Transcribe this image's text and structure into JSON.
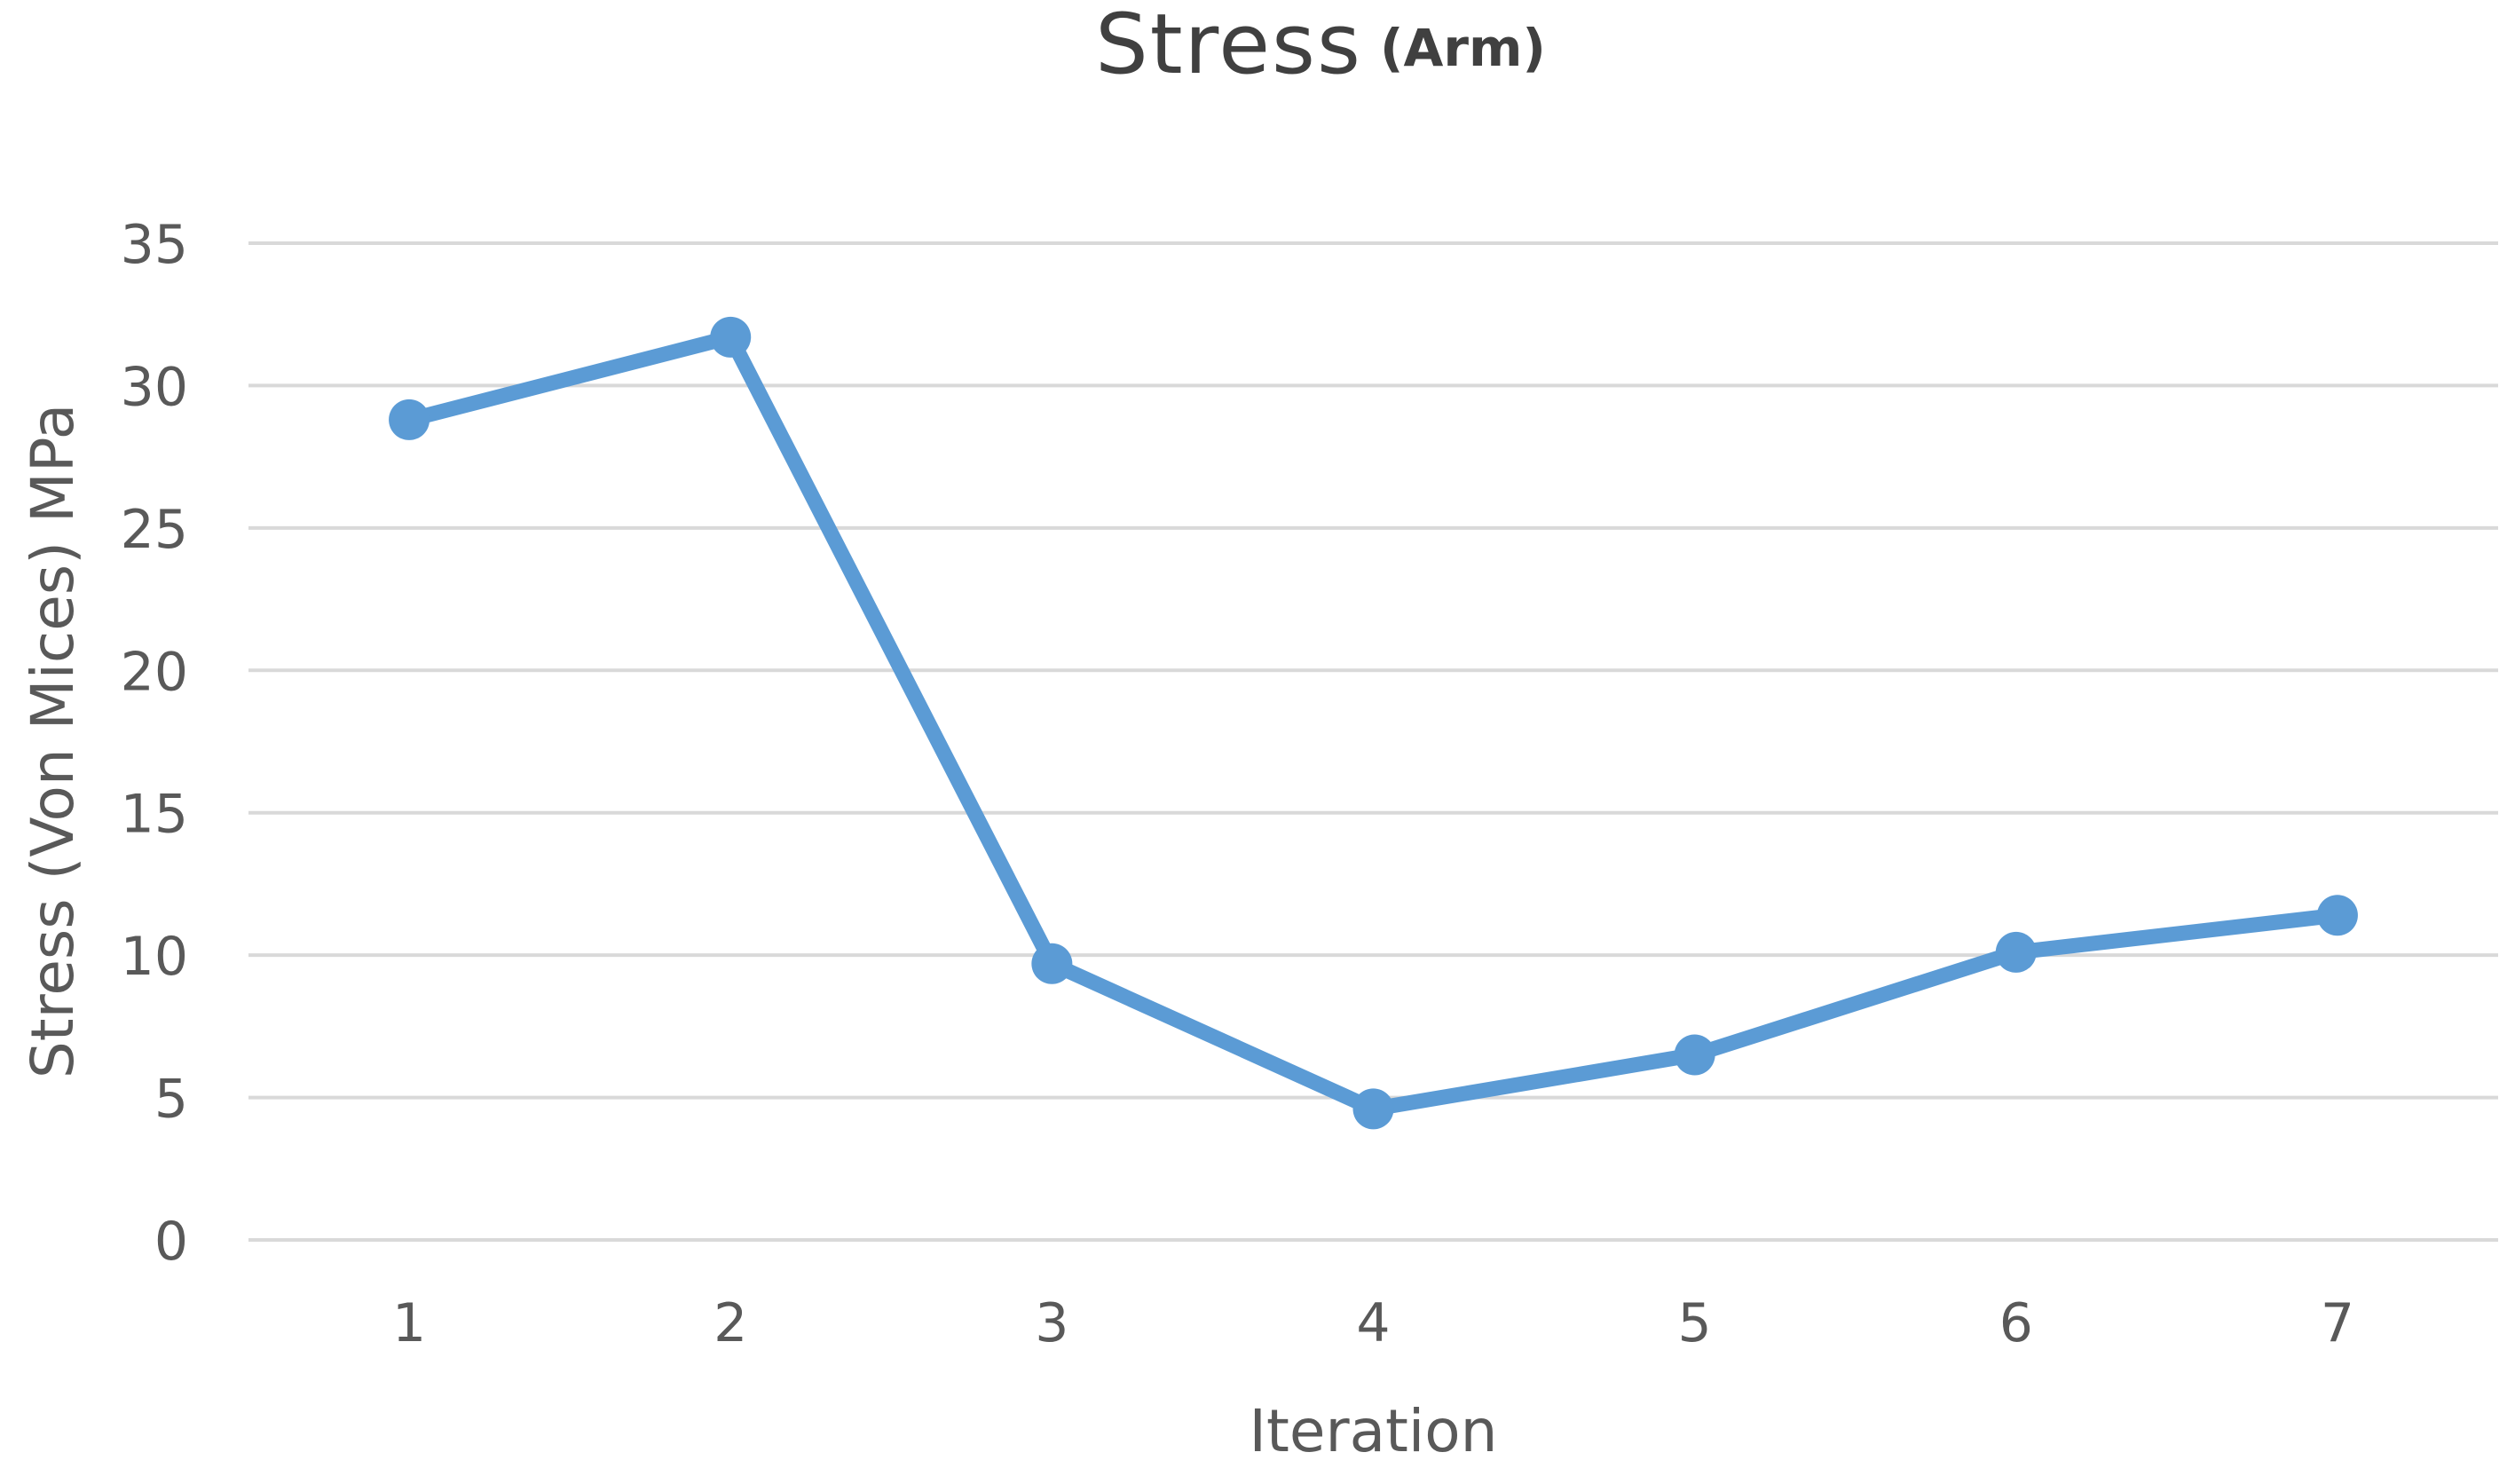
{
  "chart_data": {
    "type": "line",
    "title": "Stress",
    "title_suffix": "(Arm)",
    "xlabel": "Iteration",
    "ylabel": "Stress (Von Mices) MPa",
    "categories": [
      "1",
      "2",
      "3",
      "4",
      "5",
      "6",
      "7"
    ],
    "series": [
      {
        "values": [
          28.8,
          31.7,
          9.7,
          4.6,
          6.5,
          10.1,
          11.4
        ]
      }
    ],
    "ylim": [
      0,
      35
    ],
    "yticks": [
      0,
      5,
      10,
      15,
      20,
      25,
      30,
      35
    ],
    "grid": true,
    "legend": "none",
    "colors": {
      "series": "#5B9BD5",
      "grid": "#D9D9D9",
      "text": "#595959",
      "title": "#404040"
    }
  }
}
